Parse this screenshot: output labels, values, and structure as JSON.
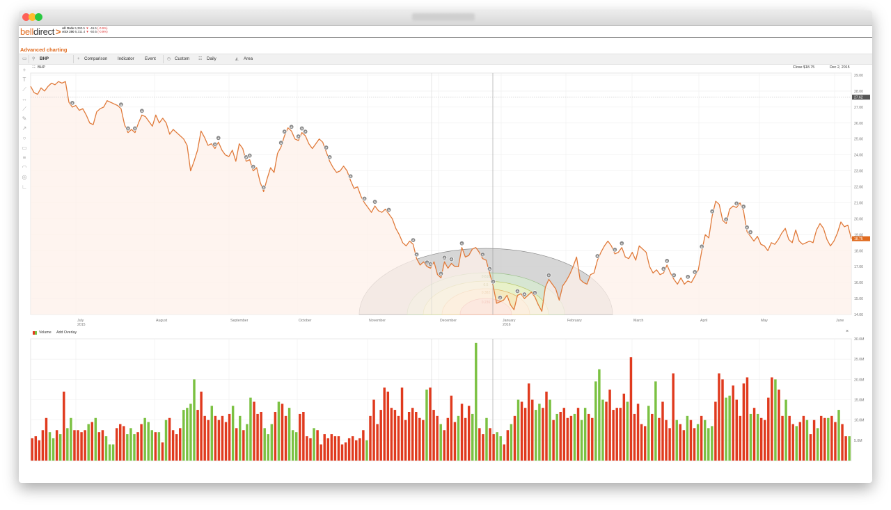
{
  "window": {
    "colors": {
      "close": "#fe5f57",
      "minimize": "#febc2e",
      "maximize": "#28c840"
    }
  },
  "header": {
    "logo_part1": "bell",
    "logo_part2": "direct",
    "logo_chevron": ">",
    "indices": [
      {
        "name": "All Ords",
        "value": "5,390.5",
        "change": "-46.5",
        "pct": "(-0.9%)"
      },
      {
        "name": "ASX 200",
        "value": "5,311.4",
        "change": "-50.5",
        "pct": "(-0.9%)"
      }
    ]
  },
  "page_title": "Advanced charting",
  "toolbar": {
    "symbol": "BHP",
    "comparison": "Comparison",
    "indicator": "Indicator",
    "event": "Event",
    "custom": "Custom",
    "daily": "Daily",
    "area": "Area"
  },
  "chart_header": {
    "symbol": "BHP",
    "close_label": "Close $18.75",
    "date_label": "Dec 2, 2015"
  },
  "volume_header": {
    "label": "Volume",
    "add_overlay": "Add Overlay",
    "close_glyph": "×"
  },
  "colors": {
    "price_line": "#e07a3a",
    "area_fill": "#fdf0ea",
    "volume_up": "#7bc142",
    "volume_down": "#e03a1e",
    "accent": "#e06b1f"
  },
  "chart_data": [
    {
      "type": "area",
      "series": [
        {
          "name": "BHP"
        }
      ],
      "y_axis": {
        "range": [
          14.0,
          29.0
        ],
        "ticks": [
          "29.00",
          "28.00",
          "27.00",
          "26.00",
          "25.00",
          "24.00",
          "23.00",
          "22.00",
          "21.00",
          "20.00",
          "19.00",
          "18.00",
          "17.00",
          "16.00",
          "15.00",
          "14.00"
        ]
      },
      "x_axis": {
        "ticks": [
          [
            "July",
            "2015"
          ],
          [
            "August",
            ""
          ],
          [
            "September",
            ""
          ],
          [
            "October",
            ""
          ],
          [
            "November",
            ""
          ],
          [
            "December",
            ""
          ],
          [
            "January",
            "2016"
          ],
          [
            "February",
            ""
          ],
          [
            "March",
            ""
          ],
          [
            "April",
            ""
          ],
          [
            "May",
            ""
          ],
          [
            "June",
            ""
          ]
        ]
      },
      "crosshair_value": "27.62",
      "last_value": "18.75",
      "price": [
        28.3,
        27.9,
        27.8,
        28.2,
        28.0,
        28.3,
        28.5,
        28.4,
        28.6,
        28.5,
        28.6,
        27.3,
        27.0,
        27.1,
        26.8,
        26.9,
        26.5,
        26.0,
        25.9,
        26.7,
        26.9,
        27.0,
        27.4,
        27.3,
        27.2,
        27.1,
        26.9,
        25.9,
        25.4,
        25.6,
        25.4,
        26.0,
        26.5,
        26.4,
        26.1,
        25.8,
        26.5,
        26.0,
        26.3,
        26.0,
        25.3,
        25.6,
        25.4,
        25.2,
        25.0,
        24.6,
        23.0,
        23.6,
        24.3,
        25.5,
        25.1,
        24.6,
        24.7,
        24.4,
        24.8,
        24.3,
        24.0,
        23.9,
        24.3,
        23.6,
        24.7,
        24.4,
        23.6,
        23.7,
        23.0,
        23.2,
        22.3,
        21.7,
        22.5,
        23.2,
        22.9,
        24.1,
        24.5,
        25.2,
        25.7,
        25.5,
        25.0,
        24.9,
        25.4,
        25.2,
        24.7,
        24.4,
        24.7,
        25.0,
        24.8,
        24.2,
        23.6,
        23.2,
        22.9,
        23.0,
        23.3,
        23.0,
        22.4,
        21.9,
        22.0,
        21.4,
        21.0,
        20.7,
        20.4,
        20.8,
        20.5,
        20.4,
        20.6,
        20.3,
        20.0,
        19.4,
        19.0,
        18.5,
        18.3,
        18.6,
        18.4,
        17.5,
        17.1,
        17.3,
        17.0,
        16.9,
        17.3,
        16.5,
        16.3,
        17.3,
        16.9,
        17.2,
        17.0,
        17.0,
        18.2,
        17.6,
        17.7,
        18.1,
        18.2,
        17.9,
        17.5,
        17.4,
        16.6,
        15.8,
        14.7,
        14.8,
        14.9,
        15.2,
        14.6,
        14.3,
        15.2,
        15.3,
        15.0,
        15.2,
        15.4,
        15.1,
        14.6,
        14.2,
        15.7,
        16.2,
        15.9,
        15.6,
        14.9,
        15.8,
        16.1,
        16.5,
        17.0,
        17.6,
        16.2,
        16.0,
        15.9,
        16.5,
        16.6,
        17.4,
        17.9,
        18.3,
        18.6,
        18.3,
        17.8,
        17.9,
        18.2,
        17.6,
        17.5,
        17.9,
        17.4,
        18.3,
        18.1,
        17.9,
        17.0,
        16.6,
        16.8,
        16.5,
        16.6,
        17.1,
        16.6,
        16.2,
        15.9,
        16.3,
        15.9,
        16.1,
        16.0,
        16.4,
        16.8,
        18.0,
        19.0,
        18.8,
        20.2,
        21.1,
        20.9,
        19.9,
        19.7,
        20.6,
        20.8,
        20.7,
        21.0,
        20.5,
        19.2,
        18.9,
        18.6,
        18.9,
        18.4,
        18.3,
        18.0,
        18.5,
        18.4,
        18.7,
        19.1,
        19.4,
        18.7,
        18.5,
        19.3,
        18.6,
        18.4,
        18.5,
        18.6,
        18.5,
        19.3,
        19.7,
        19.4,
        18.7,
        18.3,
        18.6,
        19.1,
        19.8,
        19.5,
        19.6,
        18.75
      ],
      "event_markers": [
        12,
        26,
        28,
        30,
        32,
        53,
        54,
        62,
        63,
        64,
        67,
        72,
        73,
        75,
        77,
        78,
        79,
        85,
        86,
        92,
        96,
        99,
        103,
        110,
        111,
        114,
        115,
        118,
        119,
        121,
        124,
        130,
        132,
        133,
        135,
        140,
        142,
        145,
        149,
        163,
        168,
        170,
        182,
        183,
        185,
        189,
        191,
        193,
        196,
        200,
        203,
        205,
        206,
        207,
        244,
        248,
        249
      ],
      "fibonacci_fan": {
        "levels": [
          "0.618",
          "0.5",
          "0.382",
          "0.236"
        ]
      }
    },
    {
      "type": "bar",
      "series": [
        {
          "name": "Volume"
        }
      ],
      "y_axis": {
        "range": [
          0,
          30000000
        ],
        "ticks": [
          "30.0M",
          "25.0M",
          "20.0M",
          "15.0M",
          "10.0M",
          "5.0M"
        ]
      },
      "values": [
        5.5,
        6.0,
        5.0,
        7.5,
        10.5,
        7.0,
        5.5,
        7.5,
        6.5,
        17.0,
        8.0,
        10.5,
        7.5,
        7.5,
        7.0,
        7.5,
        9.0,
        9.5,
        10.5,
        7.0,
        7.5,
        6.0,
        4.0,
        4.0,
        8.0,
        9.0,
        8.5,
        6.5,
        8.0,
        6.5,
        7.0,
        9.0,
        10.5,
        9.5,
        7.5,
        7.0,
        7.0,
        4.5,
        10.0,
        10.5,
        7.5,
        6.5,
        8.0,
        12.5,
        13.0,
        14.0,
        20.0,
        12.5,
        17.0,
        11.0,
        10.0,
        13.5,
        11.0,
        10.0,
        11.0,
        9.5,
        11.5,
        13.5,
        8.0,
        11.0,
        7.5,
        9.0,
        15.5,
        14.5,
        11.5,
        12.0,
        8.0,
        6.5,
        9.0,
        12.0,
        14.5,
        14.0,
        11.0,
        13.0,
        7.5,
        7.0,
        11.5,
        12.0,
        6.0,
        5.5,
        8.0,
        7.5,
        4.0,
        6.5,
        5.5,
        6.5,
        6.0,
        6.0,
        4.0,
        4.5,
        5.5,
        6.0,
        5.0,
        5.5,
        7.5,
        5.0,
        11.0,
        15.0,
        9.0,
        12.5,
        18.0,
        17.0,
        13.0,
        12.5,
        11.0,
        18.0,
        10.0,
        12.0,
        13.0,
        12.0,
        10.5,
        10.0,
        17.5,
        18.0,
        12.5,
        11.0,
        9.0,
        7.5,
        10.5,
        16.0,
        9.5,
        11.0,
        14.0,
        10.5,
        13.5,
        11.5,
        29.0,
        8.0,
        6.5,
        10.5,
        8.0,
        6.5,
        7.0,
        6.0,
        4.0,
        7.5,
        9.0,
        11.0,
        15.0,
        14.5,
        13.0,
        19.0,
        15.0,
        12.5,
        14.0,
        13.0,
        17.0,
        15.0,
        10.0,
        11.5,
        12.0,
        13.0,
        10.5,
        11.0,
        11.5,
        13.0,
        10.0,
        13.0,
        11.5,
        10.5,
        19.5,
        22.5,
        15.0,
        14.5,
        17.5,
        12.5,
        13.0,
        13.0,
        16.5,
        14.5,
        25.5,
        11.5,
        14.0,
        9.0,
        8.5,
        13.5,
        11.5,
        19.5,
        10.5,
        14.5,
        10.0,
        8.0,
        21.5,
        10.0,
        9.0,
        7.5,
        11.0,
        10.0,
        8.0,
        9.0,
        11.0,
        10.0,
        8.0,
        8.5,
        14.5,
        21.5,
        20.0,
        15.5,
        16.0,
        18.5,
        15.0,
        11.0,
        19.0,
        20.5,
        11.5,
        13.0,
        11.5,
        10.5,
        10.0,
        15.5,
        20.5,
        20.0,
        17.5,
        11.0,
        15.0,
        11.0,
        9.0,
        8.5,
        9.5,
        11.0,
        10.0,
        6.5,
        10.0,
        8.0,
        11.0,
        10.5,
        10.5,
        11.0,
        9.5,
        12.5,
        9.0,
        6.0,
        6.0
      ],
      "directions": "rrrrrggrgrggrrrrgrgrrgggrrrgggrrgggrgrgrrrrggggrrrrgrrrrrgrgrggrrrgggrgrrgggrrrrgrrrrrrrrrrrrrrgrrrrrrrrrrrrrrrrgrrrgrrrrgrrrggrrgrrggrrgrgrrrrggrrgrgrrrrgrggrrgggrrrrrrgrrrrrgrgrrrrrgrrgrrgrgggrrrggrrrrrgrgrrrrgrrgrrgrrgrrgrrgrrgrrgrrgr"
    }
  ]
}
